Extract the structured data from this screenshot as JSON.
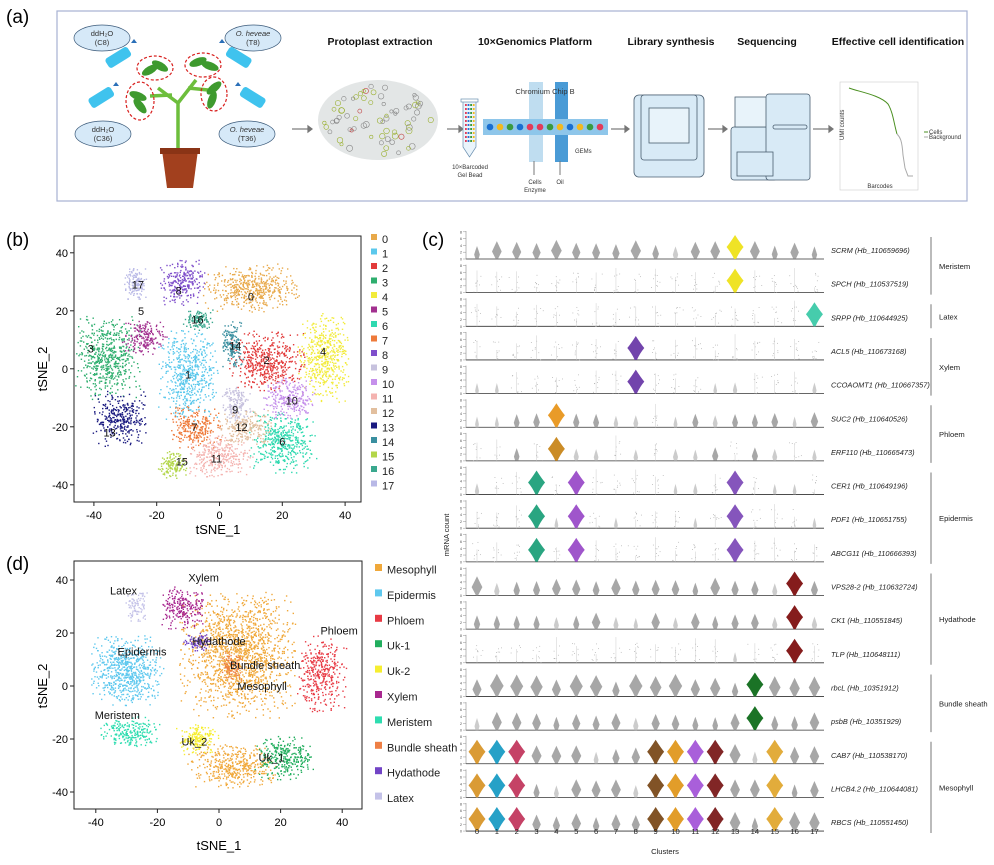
{
  "panels": {
    "a": "(a)",
    "b": "(b)",
    "c": "(c)",
    "d": "(d)"
  },
  "workflow": {
    "treatments": [
      {
        "line1": "ddH₂O",
        "line2": "(C8)"
      },
      {
        "line1": "O. heveae",
        "line2": "(T8)"
      },
      {
        "line1": "ddH₂O",
        "line2": "(C36)"
      },
      {
        "line1": "O. heveae",
        "line2": "(T36)"
      }
    ],
    "steps": [
      "Protoplast extraction",
      "10×Genomics Platform",
      "Library synthesis",
      "Sequencing",
      "Effective cell identification"
    ],
    "gel_bead": [
      "10×Barcoded",
      "Gel Bead"
    ],
    "chip_label": "Chromium Chip B",
    "gems_label": "GEMs",
    "cells_label": [
      "Cells",
      "Enzyme"
    ],
    "oil_label": "Oil",
    "mini_chart": {
      "ylabel": "UMI counts",
      "xlabel": "Barcodes",
      "legend": [
        "Cells",
        "Background"
      ]
    },
    "colors": {
      "bubble": "#D6E9F8",
      "bottle": "#3FC3EE",
      "leaf": "#3E9A2E",
      "pot": "#A2401E",
      "dashed": "#D8201E"
    }
  },
  "chart_data": [
    {
      "id": "b",
      "type": "scatter",
      "xlabel": "tSNE_1",
      "ylabel": "tSNE_2",
      "xlim": [
        -46,
        45
      ],
      "ylim": [
        -46,
        46
      ],
      "xticks": [
        -40,
        -20,
        0,
        20,
        40
      ],
      "yticks": [
        -40,
        -20,
        0,
        20,
        40
      ],
      "legend_position": "right",
      "clusters": [
        {
          "name": "0",
          "color": "#E8A94A",
          "cx": 10,
          "cy": 28,
          "sx": 13,
          "sy": 7,
          "label": [
            10,
            25
          ]
        },
        {
          "name": "1",
          "color": "#5BC8EC",
          "cx": -10,
          "cy": -2,
          "sx": 8,
          "sy": 13,
          "label": [
            -10,
            -2
          ]
        },
        {
          "name": "2",
          "color": "#E23B3B",
          "cx": 15,
          "cy": 3,
          "sx": 10,
          "sy": 9,
          "label": [
            15,
            3
          ]
        },
        {
          "name": "3",
          "color": "#2EAE6E",
          "cx": -36,
          "cy": 4,
          "sx": 9,
          "sy": 12,
          "label": [
            -41,
            7
          ]
        },
        {
          "name": "4",
          "color": "#F2EB3B",
          "cx": 33,
          "cy": 4,
          "sx": 7,
          "sy": 13,
          "label": [
            33,
            6
          ]
        },
        {
          "name": "5",
          "color": "#A2308F",
          "cx": -24,
          "cy": 11,
          "sx": 6,
          "sy": 5,
          "label": [
            -25,
            20
          ]
        },
        {
          "name": "6",
          "color": "#2FD9B0",
          "cx": 20,
          "cy": -25,
          "sx": 9,
          "sy": 9,
          "label": [
            20,
            -25
          ]
        },
        {
          "name": "7",
          "color": "#EE7A3A",
          "cx": -8,
          "cy": -20,
          "sx": 7,
          "sy": 6,
          "label": [
            -8,
            -20
          ]
        },
        {
          "name": "8",
          "color": "#7F4FCB",
          "cx": -12,
          "cy": 30,
          "sx": 6,
          "sy": 7,
          "label": [
            -13,
            27
          ]
        },
        {
          "name": "9",
          "color": "#C7C2DE",
          "cx": 5,
          "cy": -12,
          "sx": 4,
          "sy": 6,
          "label": [
            5,
            -14
          ]
        },
        {
          "name": "10",
          "color": "#C590EB",
          "cx": 22,
          "cy": -10,
          "sx": 7,
          "sy": 6,
          "label": [
            23,
            -11
          ]
        },
        {
          "name": "11",
          "color": "#F4B3B0",
          "cx": 0,
          "cy": -30,
          "sx": 9,
          "sy": 6,
          "label": [
            -1,
            -31
          ]
        },
        {
          "name": "12",
          "color": "#E2BF9E",
          "cx": 8,
          "cy": -20,
          "sx": 7,
          "sy": 5,
          "label": [
            7,
            -20
          ]
        },
        {
          "name": "13",
          "color": "#1A1A80",
          "cx": -32,
          "cy": -17,
          "sx": 7,
          "sy": 8,
          "label": [
            -35,
            -22
          ]
        },
        {
          "name": "14",
          "color": "#3A8FA0",
          "cx": 4,
          "cy": 9,
          "sx": 3,
          "sy": 7,
          "label": [
            5,
            8
          ]
        },
        {
          "name": "15",
          "color": "#B3D64A",
          "cx": -15,
          "cy": -33,
          "sx": 4,
          "sy": 4,
          "label": [
            -12,
            -32
          ]
        },
        {
          "name": "16",
          "color": "#3AA88E",
          "cx": -7,
          "cy": 17,
          "sx": 4,
          "sy": 3,
          "label": [
            -7,
            17
          ]
        },
        {
          "name": "17",
          "color": "#B8B8E6",
          "cx": -27,
          "cy": 30,
          "sx": 3,
          "sy": 5,
          "label": [
            -26,
            29
          ]
        }
      ]
    },
    {
      "id": "c",
      "type": "violin",
      "xlabel": "Clusters",
      "ylabel": "mRNA count",
      "clusters": [
        "0",
        "1",
        "2",
        "3",
        "4",
        "5",
        "6",
        "7",
        "8",
        "9",
        "10",
        "11",
        "12",
        "13",
        "14",
        "15",
        "16",
        "17"
      ],
      "yticks": [
        0,
        2,
        4,
        6,
        8
      ],
      "genes": [
        {
          "name": "SCRM (Hb_110659696)",
          "group": "Meristem",
          "background": 0.45,
          "highlight": {
            "13": "#EEE21A"
          }
        },
        {
          "name": "SPCH (Hb_110537519)",
          "group": "Meristem",
          "background": 0.12,
          "highlight": {
            "13": "#EEE21A"
          }
        },
        {
          "name": "SRPP (Hb_110644925)",
          "group": "Latex",
          "background": 0.06,
          "highlight": {
            "17": "#3CC9A8"
          }
        },
        {
          "name": "ACL5 (Hb_110673168)",
          "group": "Xylem",
          "background": 0.12,
          "highlight": {
            "8": "#6A3AA8"
          }
        },
        {
          "name": "CCOAOMT1 (Hb_110667357)",
          "group": "Xylem",
          "background": 0.18,
          "highlight": {
            "8": "#6A3AA8"
          }
        },
        {
          "name": "SUC2 (Hb_110640526)",
          "group": "Phloem",
          "background": 0.3,
          "highlight": {
            "4": "#E8961C"
          }
        },
        {
          "name": "ERF110 (Hb_110665473)",
          "group": "Phloem",
          "background": 0.25,
          "highlight": {
            "4": "#C8861A"
          }
        },
        {
          "name": "CER1 (Hb_110649196)",
          "group": "Epidermis",
          "background": 0.18,
          "highlight": {
            "3": "#1FA07A",
            "5": "#9A4CC8",
            "13": "#7E4CB8"
          }
        },
        {
          "name": "PDF1 (Hb_110651755)",
          "group": "Epidermis",
          "background": 0.15,
          "highlight": {
            "3": "#1FA07A",
            "5": "#9A4CC8",
            "13": "#7E4CB8"
          }
        },
        {
          "name": "ABCG11 (Hb_110666393)",
          "group": "Epidermis",
          "background": 0.15,
          "highlight": {
            "3": "#1FA07A",
            "5": "#9A4CC8",
            "13": "#7E4CB8"
          }
        },
        {
          "name": "VPS28-2 (Hb_110632724)",
          "group": "Hydathode",
          "background": 0.45,
          "highlight": {
            "16": "#7E1010"
          }
        },
        {
          "name": "CK1 (Hb_110551845)",
          "group": "Hydathode",
          "background": 0.35,
          "highlight": {
            "16": "#7E1010"
          }
        },
        {
          "name": "TLP (Hb_110648111)",
          "group": "Hydathode",
          "background": 0.15,
          "highlight": {
            "16": "#7E1010"
          }
        },
        {
          "name": "rbcL (Hb_10351912)",
          "group": "Bundle sheath",
          "background": 0.55,
          "highlight": {
            "14": "#0F6B1A"
          }
        },
        {
          "name": "psbB (Hb_10351929)",
          "group": "Bundle sheath",
          "background": 0.4,
          "highlight": {
            "14": "#0F6B1A"
          }
        },
        {
          "name": "CAB7 (Hb_110538170)",
          "group": "Mesophyll",
          "background": 0.45,
          "highlight": {
            "0": "#D8962A",
            "1": "#1A9CC4",
            "2": "#C2385E",
            "9": "#7A4A1A",
            "10": "#E0981E",
            "11": "#A456D8",
            "12": "#7A1A1A",
            "15": "#E0A830"
          }
        },
        {
          "name": "LHCB4.2 (Hb_110644081)",
          "group": "Mesophyll",
          "background": 0.45,
          "highlight": {
            "0": "#D8962A",
            "1": "#1A9CC4",
            "2": "#C2385E",
            "9": "#7A4A1A",
            "10": "#E0981E",
            "11": "#A456D8",
            "12": "#7A1A1A",
            "15": "#E0A830"
          }
        },
        {
          "name": "RBCS (Hb_110551450)",
          "group": "Mesophyll",
          "background": 0.45,
          "highlight": {
            "0": "#D8962A",
            "1": "#1A9CC4",
            "2": "#C2385E",
            "9": "#7A4A1A",
            "10": "#E0981E",
            "11": "#A456D8",
            "12": "#7A1A1A",
            "15": "#E0A830"
          }
        }
      ],
      "groups": [
        {
          "name": "Meristem",
          "rows": [
            0,
            1
          ]
        },
        {
          "name": "Latex",
          "rows": [
            2,
            2
          ]
        },
        {
          "name": "Xylem",
          "rows": [
            3,
            4
          ]
        },
        {
          "name": "Phloem",
          "rows": [
            5,
            6
          ]
        },
        {
          "name": "Epidermis",
          "rows": [
            7,
            9
          ]
        },
        {
          "name": "Hydathode",
          "rows": [
            10,
            12
          ]
        },
        {
          "name": "Bundle sheath",
          "rows": [
            13,
            14
          ]
        },
        {
          "name": "Mesophyll",
          "rows": [
            15,
            17
          ]
        }
      ]
    },
    {
      "id": "d",
      "type": "scatter",
      "xlabel": "tSNE_1",
      "ylabel": "tSNE_2",
      "xlim": [
        -46,
        46
      ],
      "ylim": [
        -47,
        47
      ],
      "xticks": [
        -40,
        -20,
        0,
        20,
        40
      ],
      "yticks": [
        -40,
        -20,
        0,
        20,
        40
      ],
      "legend_position": "right",
      "clusters": [
        {
          "name": "Mesophyll",
          "text": "Mesophyll",
          "color": "#F0A83A",
          "blobs": [
            [
              6,
              12,
              16,
              20,
              1600
            ],
            [
              4,
              -30,
              12,
              7,
              450
            ]
          ],
          "label": [
            14,
            0
          ]
        },
        {
          "name": "Epidermis",
          "text": "Epidermis",
          "color": "#5EC8EE",
          "blobs": [
            [
              -30,
              6,
              10,
              11,
              700
            ]
          ],
          "label": [
            -25,
            13
          ]
        },
        {
          "name": "Phloem",
          "text": "Phloem",
          "color": "#E83A44",
          "blobs": [
            [
              33,
              5,
              7,
              12,
              380
            ]
          ],
          "label": [
            39,
            21
          ]
        },
        {
          "name": "Uk-1",
          "text": "Uk_1",
          "color": "#22AE5E",
          "blobs": [
            [
              21,
              -27,
              8,
              7,
              320
            ]
          ],
          "label": [
            17,
            -27
          ]
        },
        {
          "name": "Uk-2",
          "text": "Uk_2",
          "color": "#F6EE30",
          "blobs": [
            [
              -7,
              -20,
              6,
              5,
              200
            ]
          ],
          "label": [
            -8,
            -21
          ]
        },
        {
          "name": "Xylem",
          "text": "Xylem",
          "color": "#A8278F",
          "blobs": [
            [
              -12,
              30,
              6,
              7,
              250
            ]
          ],
          "label": [
            -5,
            41
          ]
        },
        {
          "name": "Meristem",
          "text": "Meristem",
          "color": "#2EDDB0",
          "blobs": [
            [
              -29,
              -17,
              8,
              5,
              240
            ]
          ],
          "label": [
            -33,
            -11
          ]
        },
        {
          "name": "Bundle sheath",
          "text": "Bundle sheath",
          "color": "#EE7F45",
          "blobs": [
            [
              4,
              7,
              3,
              5,
              90
            ]
          ],
          "label": [
            15,
            8
          ]
        },
        {
          "name": "Hydathode",
          "text": "Hydathode",
          "color": "#7244C6",
          "blobs": [
            [
              -7,
              17,
              4,
              3,
              90
            ]
          ],
          "label": [
            0,
            17
          ]
        },
        {
          "name": "Latex",
          "text": "Latex",
          "color": "#C4C2E8",
          "blobs": [
            [
              -27,
              30,
              3,
              5,
              90
            ]
          ],
          "label": [
            -31,
            36
          ]
        }
      ]
    }
  ]
}
